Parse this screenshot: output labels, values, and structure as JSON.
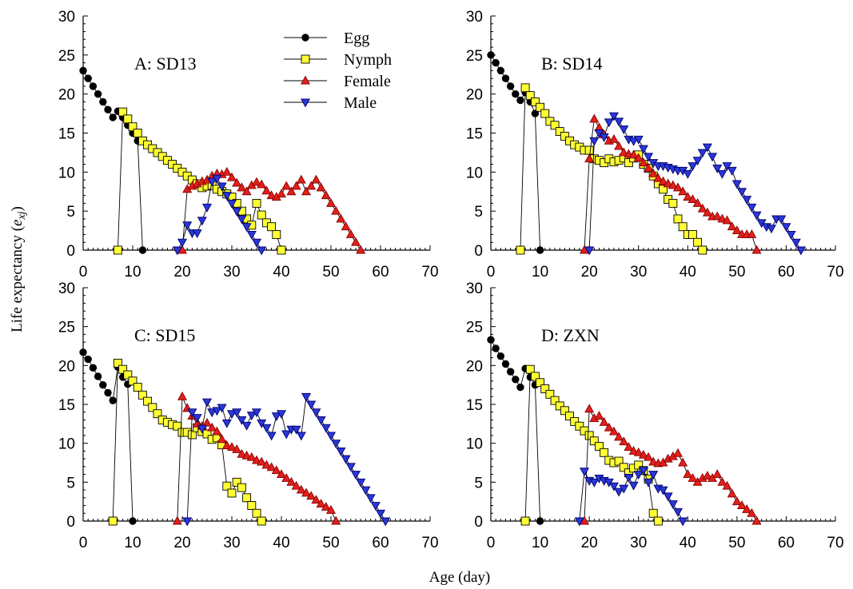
{
  "figure": {
    "ylabel_main": "Life expectancy (",
    "ylabel_var": "e",
    "ylabel_sub": "xj",
    "ylabel_close": ")",
    "xlabel": "Age (day)"
  },
  "legend": {
    "panel": 0,
    "entries": [
      "Egg",
      "Nymph",
      "Female",
      "Male"
    ]
  },
  "series_styles": [
    {
      "name": "Egg",
      "marker": "circle",
      "fill": "#000000",
      "stroke": "#000000"
    },
    {
      "name": "Nymph",
      "marker": "square",
      "fill": "#ffff33",
      "stroke": "#000000"
    },
    {
      "name": "Female",
      "marker": "triangle-up",
      "fill": "#e0201b",
      "stroke": "#8b0000"
    },
    {
      "name": "Male",
      "marker": "triangle-down",
      "fill": "#2a37d6",
      "stroke": "#00006b"
    }
  ],
  "chart_data": [
    {
      "type": "line",
      "title": "A: SD13",
      "xlim": [
        0,
        70
      ],
      "ylim": [
        0,
        30
      ],
      "xticks": [
        "0",
        "10",
        "20",
        "30",
        "40",
        "50",
        "60",
        "70"
      ],
      "yticks": [
        "0",
        "5",
        "10",
        "15",
        "20",
        "25",
        "30"
      ],
      "series": [
        {
          "name": "Egg",
          "x": [
            0,
            1,
            2,
            3,
            4,
            5,
            6,
            7,
            8,
            9,
            10,
            11,
            12
          ],
          "y": [
            23,
            22,
            21,
            20,
            19,
            18,
            17,
            17.8,
            17,
            16,
            15,
            14,
            0
          ]
        },
        {
          "name": "Nymph",
          "x": [
            7,
            8,
            9,
            10,
            11,
            12,
            13,
            14,
            15,
            16,
            17,
            18,
            19,
            20,
            21,
            22,
            23,
            24,
            25,
            26,
            27,
            28,
            29,
            30,
            31,
            32,
            33,
            34,
            35,
            36,
            37,
            38,
            39,
            40
          ],
          "y": [
            0,
            17.7,
            16.8,
            15.8,
            15,
            14,
            13.5,
            13,
            12.5,
            12,
            11.5,
            11,
            10.5,
            10,
            9.5,
            9,
            8.5,
            8,
            8.2,
            8.3,
            7.8,
            7.5,
            7.2,
            6.8,
            6,
            5,
            4,
            3.2,
            6,
            4.5,
            3.5,
            3,
            2,
            0
          ]
        },
        {
          "name": "Female",
          "x": [
            20,
            21,
            22,
            23,
            24,
            25,
            26,
            27,
            28,
            29,
            30,
            31,
            32,
            33,
            34,
            35,
            36,
            37,
            38,
            39,
            40,
            41,
            42,
            43,
            44,
            45,
            46,
            47,
            48,
            49,
            50,
            51,
            52,
            53,
            54,
            55,
            56
          ],
          "y": [
            0,
            7.8,
            8.2,
            8.5,
            8.8,
            9,
            9.5,
            9.8,
            9.7,
            10,
            9.3,
            8.6,
            8.0,
            7.5,
            8.3,
            8.7,
            8.4,
            7.6,
            7,
            6.8,
            7.2,
            8.2,
            7.5,
            8.2,
            9,
            7.5,
            8.2,
            9,
            8,
            7,
            6,
            5,
            4,
            3,
            2,
            1,
            0
          ]
        },
        {
          "name": "Male",
          "x": [
            19,
            20,
            21,
            22,
            23,
            24,
            25,
            26,
            27,
            28,
            29,
            30,
            31,
            32,
            33,
            34,
            35,
            36
          ],
          "y": [
            0,
            1,
            3.2,
            2.2,
            2.2,
            3.8,
            5.5,
            8.8,
            9.2,
            8.2,
            7,
            6,
            5,
            4,
            3,
            2,
            1,
            0
          ]
        }
      ]
    },
    {
      "type": "line",
      "title": "B: SD14",
      "xlim": [
        0,
        70
      ],
      "ylim": [
        0,
        30
      ],
      "xticks": [
        "0",
        "10",
        "20",
        "30",
        "40",
        "50",
        "60",
        "70"
      ],
      "yticks": [
        "0",
        "5",
        "10",
        "15",
        "20",
        "25",
        "30"
      ],
      "series": [
        {
          "name": "Egg",
          "x": [
            0,
            1,
            2,
            3,
            4,
            5,
            6,
            7,
            8,
            9,
            10
          ],
          "y": [
            25,
            24,
            23,
            22,
            21,
            20,
            19.2,
            20.2,
            19,
            17.5,
            0
          ]
        },
        {
          "name": "Nymph",
          "x": [
            6,
            7,
            8,
            9,
            10,
            11,
            12,
            13,
            14,
            15,
            16,
            17,
            18,
            19,
            20,
            21,
            22,
            23,
            24,
            25,
            26,
            27,
            28,
            29,
            30,
            31,
            32,
            33,
            34,
            35,
            36,
            37,
            38,
            39,
            40,
            41,
            42,
            43
          ],
          "y": [
            0,
            20.8,
            19.8,
            19,
            18.3,
            17.5,
            16.5,
            16,
            15.2,
            14.6,
            14,
            13.5,
            13.2,
            12.8,
            12.8,
            11.7,
            11.5,
            11.2,
            11.7,
            11.3,
            11.5,
            11.8,
            11.2,
            11.8,
            12.2,
            11,
            10.5,
            9.5,
            8.5,
            7.8,
            6.5,
            6,
            4,
            3,
            2,
            2,
            1,
            0
          ]
        },
        {
          "name": "Female",
          "x": [
            19,
            20,
            21,
            22,
            23,
            24,
            25,
            26,
            27,
            28,
            29,
            30,
            31,
            32,
            33,
            34,
            35,
            36,
            37,
            38,
            39,
            40,
            41,
            42,
            43,
            44,
            45,
            46,
            47,
            48,
            49,
            50,
            51,
            52,
            53,
            54
          ],
          "y": [
            0,
            11.7,
            16.8,
            15.7,
            14.8,
            14,
            14.2,
            13.3,
            12.5,
            12.3,
            12.2,
            11.8,
            11.2,
            10.5,
            9.8,
            9.2,
            8.8,
            8.5,
            8.3,
            8,
            7.5,
            6.8,
            6.5,
            6,
            5.3,
            4.8,
            4.3,
            4.3,
            4,
            3.8,
            3,
            2.5,
            2,
            2,
            2,
            0
          ]
        },
        {
          "name": "Male",
          "x": [
            20,
            21,
            22,
            23,
            24,
            25,
            26,
            27,
            28,
            29,
            30,
            31,
            32,
            33,
            34,
            35,
            36,
            37,
            38,
            39,
            40,
            41,
            42,
            43,
            44,
            45,
            46,
            47,
            48,
            49,
            50,
            51,
            52,
            53,
            54,
            55,
            56,
            57,
            58,
            59,
            60,
            61,
            62,
            63
          ],
          "y": [
            0,
            14,
            15,
            14.5,
            16.4,
            17.2,
            16.5,
            15.5,
            14.2,
            14,
            14.2,
            13,
            12,
            11.2,
            10.8,
            10.8,
            10.6,
            10.4,
            10.2,
            10.2,
            9.8,
            10.8,
            11.5,
            12.5,
            13.2,
            12,
            10.5,
            9.8,
            10.8,
            10.2,
            8.5,
            7.5,
            6.5,
            5.5,
            4.5,
            3.5,
            3,
            2.8,
            4,
            4,
            3,
            2,
            1,
            0
          ]
        }
      ]
    },
    {
      "type": "line",
      "title": "C: SD15",
      "xlim": [
        0,
        70
      ],
      "ylim": [
        0,
        30
      ],
      "xticks": [
        "0",
        "10",
        "20",
        "30",
        "40",
        "50",
        "60",
        "70"
      ],
      "yticks": [
        "0",
        "5",
        "10",
        "15",
        "20",
        "25",
        "30"
      ],
      "series": [
        {
          "name": "Egg",
          "x": [
            0,
            1,
            2,
            3,
            4,
            5,
            6,
            7,
            8,
            9,
            10
          ],
          "y": [
            21.7,
            20.8,
            19.7,
            18.6,
            17.5,
            16.5,
            15.5,
            19.8,
            18.5,
            17.6,
            0
          ]
        },
        {
          "name": "Nymph",
          "x": [
            6,
            7,
            8,
            9,
            10,
            11,
            12,
            13,
            14,
            15,
            16,
            17,
            18,
            19,
            20,
            21,
            22,
            23,
            24,
            25,
            26,
            27,
            28,
            29,
            30,
            31,
            32,
            33,
            34,
            35,
            36
          ],
          "y": [
            0,
            20.3,
            19.5,
            18.8,
            18,
            17.2,
            16.2,
            15.4,
            14.6,
            13.8,
            13,
            12.7,
            12.4,
            12.2,
            11.4,
            11.4,
            11.1,
            12,
            11.5,
            11.2,
            10.5,
            10.7,
            9.8,
            4.5,
            3.6,
            5,
            4.3,
            3,
            2,
            1,
            0
          ]
        },
        {
          "name": "Female",
          "x": [
            19,
            20,
            21,
            22,
            23,
            24,
            25,
            26,
            27,
            28,
            29,
            30,
            31,
            32,
            33,
            34,
            35,
            36,
            37,
            38,
            39,
            40,
            41,
            42,
            43,
            44,
            45,
            46,
            47,
            48,
            49,
            50,
            51
          ],
          "y": [
            0,
            16,
            14.5,
            13.5,
            12.5,
            12.2,
            12.6,
            12,
            11.5,
            10.5,
            9.7,
            9.5,
            9.2,
            8.6,
            8.4,
            8.2,
            7.8,
            7.6,
            7.2,
            6.9,
            6.5,
            6,
            5.5,
            5,
            4.5,
            4,
            3.6,
            3.2,
            2.7,
            2.2,
            1.8,
            1.4,
            0
          ]
        },
        {
          "name": "Male",
          "x": [
            21,
            22,
            23,
            24,
            25,
            26,
            27,
            28,
            29,
            30,
            31,
            32,
            33,
            34,
            35,
            36,
            37,
            38,
            39,
            40,
            41,
            42,
            43,
            44,
            45,
            46,
            47,
            48,
            49,
            50,
            51,
            52,
            53,
            54,
            55,
            56,
            57,
            58,
            59,
            60,
            61
          ],
          "y": [
            0,
            14,
            13.3,
            11.9,
            15.3,
            14,
            14.2,
            14.6,
            12.6,
            13.8,
            14,
            13,
            12.3,
            13.6,
            14,
            12.6,
            12,
            11,
            13.5,
            13.8,
            11.2,
            11.8,
            11.8,
            11,
            16,
            15,
            14,
            13,
            12,
            11,
            10,
            9,
            8,
            7,
            6,
            5,
            4,
            3,
            2,
            1,
            0
          ]
        }
      ]
    },
    {
      "type": "line",
      "title": "D: ZXN",
      "xlim": [
        0,
        70
      ],
      "ylim": [
        0,
        30
      ],
      "xticks": [
        "0",
        "10",
        "20",
        "30",
        "40",
        "50",
        "60",
        "70"
      ],
      "yticks": [
        "0",
        "5",
        "10",
        "15",
        "20",
        "25",
        "30"
      ],
      "series": [
        {
          "name": "Egg",
          "x": [
            0,
            1,
            2,
            3,
            4,
            5,
            6,
            7,
            8,
            9,
            10
          ],
          "y": [
            23.3,
            22.2,
            21.2,
            20.2,
            19.2,
            18.2,
            17.2,
            19.6,
            18.5,
            17.5,
            0
          ]
        },
        {
          "name": "Nymph",
          "x": [
            7,
            8,
            9,
            10,
            11,
            12,
            13,
            14,
            15,
            16,
            17,
            18,
            19,
            20,
            21,
            22,
            23,
            24,
            25,
            26,
            27,
            28,
            29,
            30,
            31,
            32,
            33,
            34
          ],
          "y": [
            0,
            19.5,
            18.6,
            17.8,
            17,
            16.3,
            15.5,
            14.8,
            14.2,
            13.5,
            12.8,
            12.2,
            11.6,
            11,
            10.3,
            9.6,
            8.8,
            7.8,
            7.5,
            7.7,
            6.9,
            6.2,
            6.8,
            7.2,
            6.5,
            5.4,
            1,
            0
          ]
        },
        {
          "name": "Female",
          "x": [
            19,
            20,
            21,
            22,
            23,
            24,
            25,
            26,
            27,
            28,
            29,
            30,
            31,
            32,
            33,
            34,
            35,
            36,
            37,
            38,
            39,
            40,
            41,
            42,
            43,
            44,
            45,
            46,
            47,
            48,
            49,
            50,
            51,
            52,
            53,
            54
          ],
          "y": [
            0,
            14.4,
            13.2,
            13.5,
            12.7,
            12,
            11.5,
            10.8,
            10.2,
            9.5,
            9,
            8.8,
            8.5,
            8.2,
            7.6,
            7.4,
            7.5,
            8,
            8.3,
            8.7,
            7.5,
            6,
            5.5,
            5,
            5.5,
            5.8,
            5.5,
            6,
            5,
            4.5,
            3.5,
            2.5,
            2,
            1.5,
            1,
            0
          ]
        },
        {
          "name": "Male",
          "x": [
            18,
            19,
            20,
            21,
            22,
            23,
            24,
            25,
            26,
            27,
            28,
            29,
            30,
            31,
            32,
            33,
            34,
            35,
            36,
            37,
            38,
            39
          ],
          "y": [
            0,
            6.4,
            5.2,
            5,
            5.5,
            5.2,
            5,
            4.5,
            3.8,
            4.2,
            5.6,
            4.6,
            6,
            6.5,
            5,
            6,
            4.2,
            4,
            3.2,
            2.2,
            1.2,
            0
          ]
        }
      ]
    }
  ]
}
